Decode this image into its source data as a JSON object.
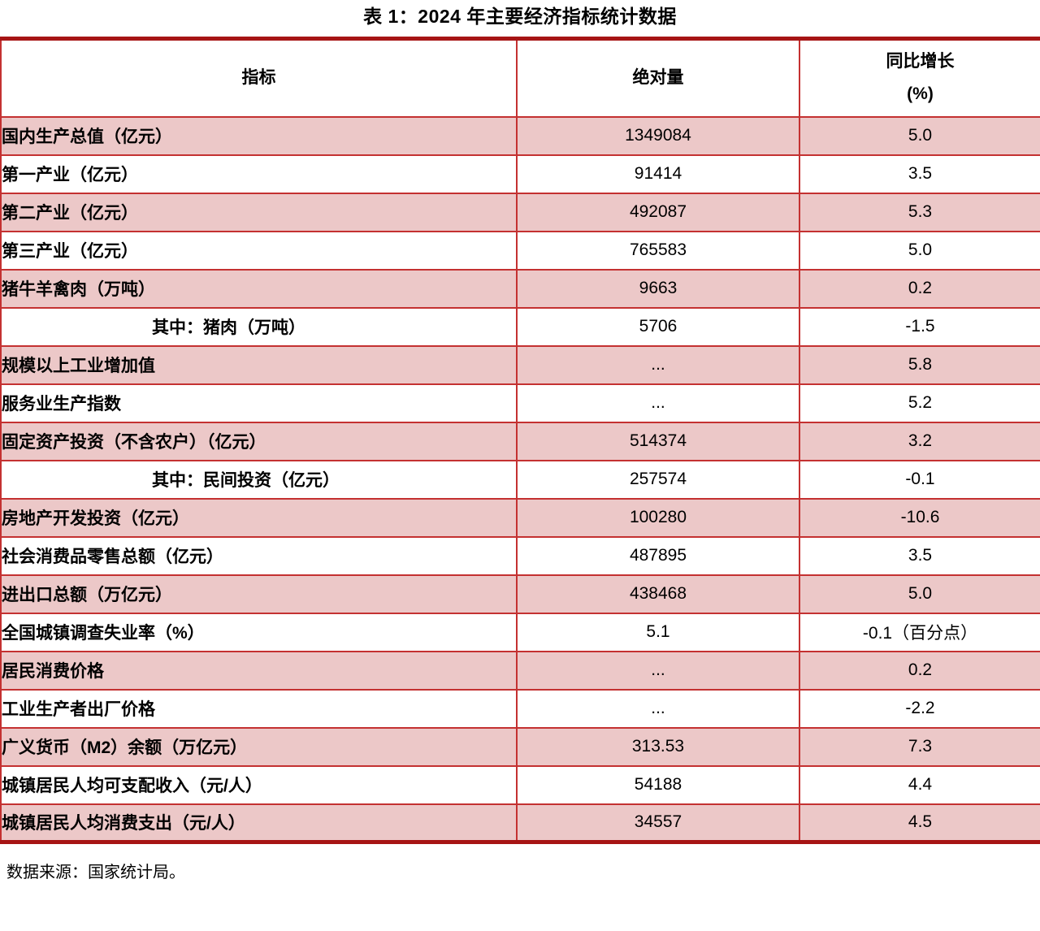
{
  "title": "表 1：2024 年主要经济指标统计数据",
  "colors": {
    "row_band_pink": "#ecc8c8",
    "grid_line_red": "#c43131",
    "frame_line_dark_red": "#a61414",
    "text": "#000000"
  },
  "table": {
    "columns": {
      "indicator": "指标",
      "absolute": "绝对量",
      "growth_line1": "同比增长",
      "growth_line2": "(%)"
    },
    "rows": [
      {
        "indicator": "国内生产总值（亿元）",
        "value": "1349084",
        "growth": "5.0",
        "sub": false
      },
      {
        "indicator": "第一产业（亿元）",
        "value": "91414",
        "growth": "3.5",
        "sub": false
      },
      {
        "indicator": "第二产业（亿元）",
        "value": "492087",
        "growth": "5.3",
        "sub": false
      },
      {
        "indicator": "第三产业（亿元）",
        "value": "765583",
        "growth": "5.0",
        "sub": false
      },
      {
        "indicator": "猪牛羊禽肉（万吨）",
        "value": "9663",
        "growth": "0.2",
        "sub": false
      },
      {
        "indicator": "其中：猪肉（万吨）",
        "value": "5706",
        "growth": "-1.5",
        "sub": true
      },
      {
        "indicator": "规模以上工业增加值",
        "value": "...",
        "growth": "5.8",
        "sub": false
      },
      {
        "indicator": "服务业生产指数",
        "value": "...",
        "growth": "5.2",
        "sub": false
      },
      {
        "indicator": "固定资产投资（不含农户）（亿元）",
        "value": "514374",
        "growth": "3.2",
        "sub": false
      },
      {
        "indicator": "其中：民间投资（亿元）",
        "value": "257574",
        "growth": "-0.1",
        "sub": true
      },
      {
        "indicator": "房地产开发投资（亿元）",
        "value": "100280",
        "growth": "-10.6",
        "sub": false
      },
      {
        "indicator": "社会消费品零售总额（亿元）",
        "value": "487895",
        "growth": "3.5",
        "sub": false
      },
      {
        "indicator": "进出口总额（万亿元）",
        "value": "438468",
        "growth": "5.0",
        "sub": false
      },
      {
        "indicator": "全国城镇调查失业率（%）",
        "value": "5.1",
        "growth": "-0.1（百分点）",
        "sub": false
      },
      {
        "indicator": "居民消费价格",
        "value": "...",
        "growth": "0.2",
        "sub": false
      },
      {
        "indicator": "工业生产者出厂价格",
        "value": "...",
        "growth": "-2.2",
        "sub": false
      },
      {
        "indicator": "广义货币（M2）余额（万亿元）",
        "value": "313.53",
        "growth": "7.3",
        "sub": false
      },
      {
        "indicator": "城镇居民人均可支配收入（元/人）",
        "value": "54188",
        "growth": "4.4",
        "sub": false
      },
      {
        "indicator": "城镇居民人均消费支出（元/人）",
        "value": "34557",
        "growth": "4.5",
        "sub": false
      }
    ]
  },
  "footer": {
    "source": "数据来源：国家统计局。"
  }
}
